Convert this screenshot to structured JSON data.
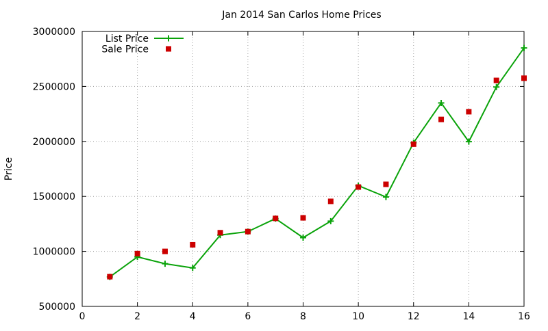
{
  "chart_data": {
    "type": "line",
    "title": "Jan 2014 San Carlos Home Prices",
    "xlabel": "",
    "ylabel": "Price",
    "xlim": [
      0,
      16
    ],
    "ylim": [
      500000,
      3000000
    ],
    "xticks": [
      0,
      2,
      4,
      6,
      8,
      10,
      12,
      14,
      16
    ],
    "yticks": [
      500000,
      1000000,
      1500000,
      2000000,
      2500000,
      3000000
    ],
    "grid": true,
    "legend_position": "top-left",
    "series": [
      {
        "name": "List Price",
        "style": "line-with-plus-markers",
        "color": "#0aa30a",
        "x": [
          1,
          2,
          3,
          4,
          5,
          6,
          7,
          8,
          9,
          10,
          11,
          12,
          13,
          14,
          15,
          16
        ],
        "values": [
          768000,
          950000,
          888000,
          850000,
          1148000,
          1180000,
          1298000,
          1125000,
          1275000,
          1598000,
          1495000,
          1988000,
          2350000,
          1998000,
          2495000,
          2850000
        ]
      },
      {
        "name": "Sale Price",
        "style": "square-markers",
        "color": "#cc0000",
        "x": [
          1,
          2,
          3,
          4,
          5,
          6,
          7,
          8,
          9,
          10,
          11,
          12,
          13,
          14,
          15,
          16
        ],
        "values": [
          770000,
          980000,
          1000000,
          1060000,
          1170000,
          1180000,
          1300000,
          1305000,
          1455000,
          1585000,
          1610000,
          1975000,
          2200000,
          2270000,
          2555000,
          2575000
        ]
      }
    ]
  }
}
